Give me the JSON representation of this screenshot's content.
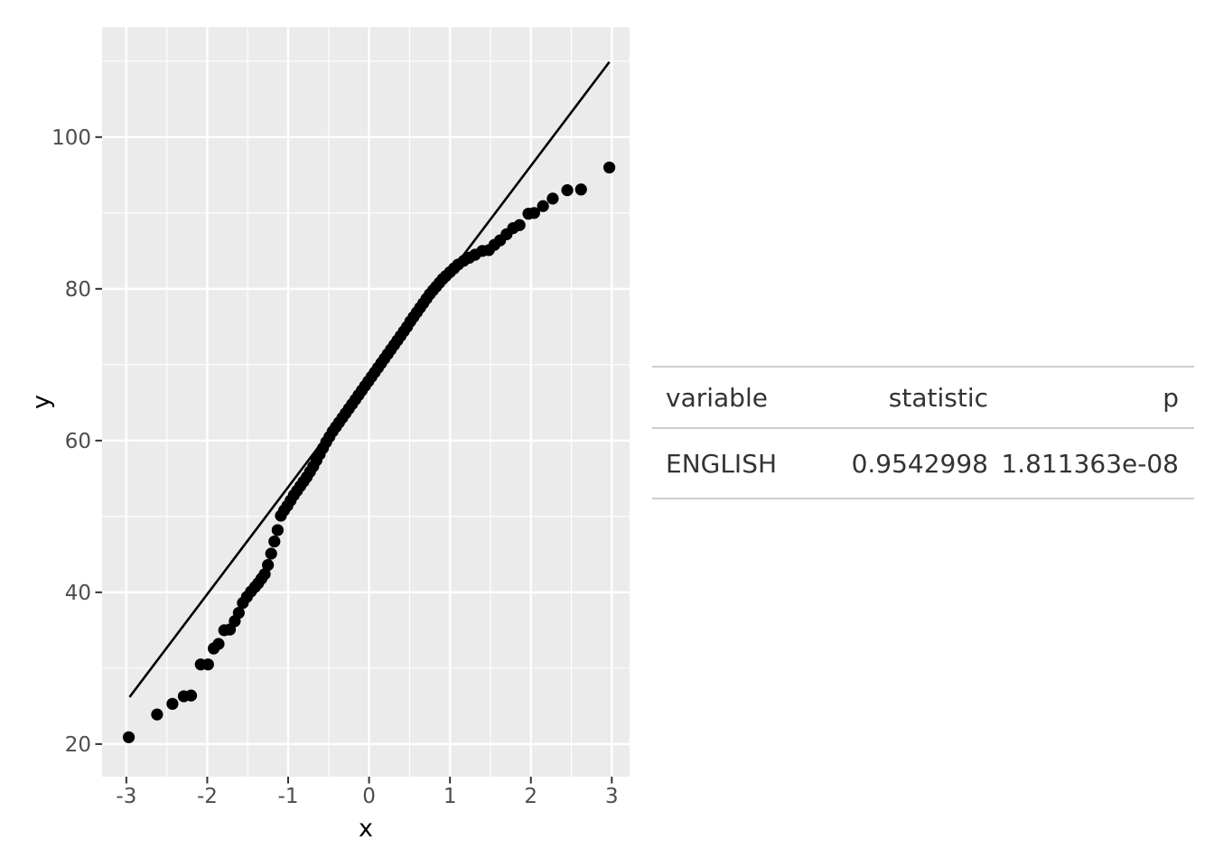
{
  "chart_data": {
    "type": "scatter",
    "subtype": "qq-plot",
    "title": "",
    "xlabel": "x",
    "ylabel": "y",
    "x_ticks": [
      -3,
      -2,
      -1,
      0,
      1,
      2,
      3
    ],
    "y_ticks": [
      20,
      40,
      60,
      80,
      100
    ],
    "x_minor": [
      -2.5,
      -1.5,
      -0.5,
      0.5,
      1.5,
      2.5
    ],
    "y_minor": [
      30,
      50,
      70,
      90,
      110
    ],
    "xlim": [
      -3.3,
      3.22
    ],
    "ylim": [
      15.7,
      114.5
    ],
    "grid": "white major+minor gridlines on gray panel",
    "legend": "none",
    "panel_bg": "#EBEBEB",
    "grid_color": "#FFFFFF",
    "point_color": "#000000",
    "line_color": "#000000",
    "tick_label_color": "#4D4D4D",
    "axis_title_color": "#000000",
    "reference_line": {
      "x1": -2.96,
      "y1": 26.2,
      "x2": 2.97,
      "y2": 109.9
    },
    "points": [
      [
        -2.97,
        20.9
      ],
      [
        -2.62,
        23.9
      ],
      [
        -2.43,
        25.3
      ],
      [
        -2.29,
        26.3
      ],
      [
        -2.2,
        26.4
      ],
      [
        -2.08,
        30.5
      ],
      [
        -1.99,
        30.5
      ],
      [
        -1.92,
        32.6
      ],
      [
        -1.86,
        33.2
      ],
      [
        -1.79,
        35.0
      ],
      [
        -1.72,
        35.1
      ],
      [
        -1.66,
        36.2
      ],
      [
        -1.61,
        37.3
      ],
      [
        -1.56,
        38.6
      ],
      [
        -1.51,
        39.4
      ],
      [
        -1.46,
        40.1
      ],
      [
        -1.41,
        40.7
      ],
      [
        -1.37,
        41.2
      ],
      [
        -1.33,
        41.8
      ],
      [
        -1.29,
        42.4
      ],
      [
        -1.25,
        43.6
      ],
      [
        -1.21,
        45.1
      ],
      [
        -1.17,
        46.7
      ],
      [
        -1.13,
        48.2
      ],
      [
        -1.09,
        50.1
      ],
      [
        -1.05,
        50.8
      ],
      [
        -1.01,
        51.4
      ],
      [
        -0.97,
        52.1
      ],
      [
        -0.93,
        52.8
      ],
      [
        -0.89,
        53.4
      ],
      [
        -0.85,
        54.0
      ],
      [
        -0.81,
        54.6
      ],
      [
        -0.77,
        55.2
      ],
      [
        -0.73,
        55.9
      ],
      [
        -0.69,
        56.6
      ],
      [
        -0.65,
        57.4
      ],
      [
        -0.61,
        58.2
      ],
      [
        -0.57,
        59.0
      ],
      [
        -0.53,
        59.8
      ],
      [
        -0.49,
        60.5
      ],
      [
        -0.45,
        61.2
      ],
      [
        -0.41,
        61.8
      ],
      [
        -0.37,
        62.4
      ],
      [
        -0.33,
        63.0
      ],
      [
        -0.29,
        63.6
      ],
      [
        -0.25,
        64.2
      ],
      [
        -0.21,
        64.8
      ],
      [
        -0.17,
        65.4
      ],
      [
        -0.13,
        66.0
      ],
      [
        -0.09,
        66.6
      ],
      [
        -0.05,
        67.2
      ],
      [
        -0.01,
        67.8
      ],
      [
        0.03,
        68.4
      ],
      [
        0.07,
        69.0
      ],
      [
        0.11,
        69.6
      ],
      [
        0.15,
        70.2
      ],
      [
        0.19,
        70.8
      ],
      [
        0.23,
        71.4
      ],
      [
        0.27,
        72.0
      ],
      [
        0.31,
        72.6
      ],
      [
        0.35,
        73.2
      ],
      [
        0.39,
        73.8
      ],
      [
        0.43,
        74.4
      ],
      [
        0.47,
        75.0
      ],
      [
        0.51,
        75.7
      ],
      [
        0.55,
        76.3
      ],
      [
        0.59,
        76.9
      ],
      [
        0.63,
        77.5
      ],
      [
        0.67,
        78.1
      ],
      [
        0.71,
        78.7
      ],
      [
        0.75,
        79.3
      ],
      [
        0.79,
        79.8
      ],
      [
        0.83,
        80.3
      ],
      [
        0.87,
        80.8
      ],
      [
        0.91,
        81.3
      ],
      [
        0.95,
        81.7
      ],
      [
        1.0,
        82.2
      ],
      [
        1.05,
        82.7
      ],
      [
        1.1,
        83.2
      ],
      [
        1.17,
        83.7
      ],
      [
        1.24,
        84.1
      ],
      [
        1.31,
        84.5
      ],
      [
        1.4,
        85.0
      ],
      [
        1.48,
        85.1
      ],
      [
        1.55,
        85.8
      ],
      [
        1.62,
        86.4
      ],
      [
        1.7,
        87.2
      ],
      [
        1.78,
        88.0
      ],
      [
        1.86,
        88.4
      ],
      [
        1.97,
        89.9
      ],
      [
        2.04,
        90.0
      ],
      [
        2.15,
        90.9
      ],
      [
        2.27,
        91.9
      ],
      [
        2.45,
        93.0
      ],
      [
        2.62,
        93.1
      ],
      [
        2.97,
        96.0
      ]
    ]
  },
  "table": {
    "columns": [
      {
        "label": "variable",
        "align": "left"
      },
      {
        "label": "statistic",
        "align": "right"
      },
      {
        "label": "p",
        "align": "right"
      }
    ],
    "rows": [
      [
        "ENGLISH",
        "0.9542998",
        "1.811363e-08"
      ]
    ]
  }
}
